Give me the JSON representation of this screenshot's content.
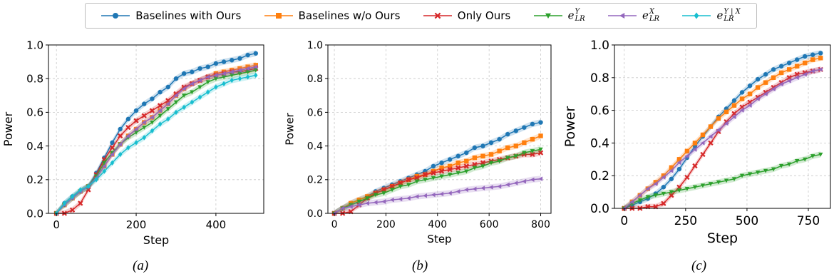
{
  "legend": {
    "items": [
      {
        "label": "Baselines with Ours",
        "color": "#1f77b4",
        "marker": "circle"
      },
      {
        "label": "Baselines w/o Ours",
        "color": "#ff7f0e",
        "marker": "square"
      },
      {
        "label": "Only Ours",
        "color": "#d62728",
        "marker": "x"
      },
      {
        "label": "e^Y_LR",
        "base": "e",
        "sup": "Y",
        "sub": "LR",
        "color": "#2ca02c",
        "marker": "tri-down"
      },
      {
        "label": "e^X_LR",
        "base": "e",
        "sup": "X",
        "sub": "LR",
        "color": "#9467bd",
        "marker": "tri-left"
      },
      {
        "label": "e^{Y|X}_LR",
        "base": "e",
        "sup": "Y | X",
        "sub": "LR",
        "color": "#17becf",
        "marker": "diamond"
      }
    ]
  },
  "captions": [
    "(a)",
    "(b)",
    "(c)"
  ],
  "chart_data": [
    {
      "type": "line",
      "xlabel": "Step",
      "ylabel": "Power",
      "xlim": [
        -20,
        520
      ],
      "ylim": [
        0,
        1.0
      ],
      "xticks": [
        0,
        200,
        400
      ],
      "yticks": [
        0.0,
        0.2,
        0.4,
        0.6,
        0.8,
        1.0
      ],
      "ytick_labels": [
        "0.0",
        "0.2",
        "0.4",
        "0.6",
        "0.8",
        "1.0"
      ],
      "grid": true,
      "x": [
        0,
        20,
        40,
        60,
        80,
        100,
        120,
        140,
        160,
        180,
        200,
        220,
        240,
        260,
        280,
        300,
        320,
        340,
        360,
        380,
        400,
        420,
        440,
        460,
        480,
        500
      ],
      "series": [
        {
          "name": "Baselines with Ours",
          "color": "#1f77b4",
          "marker": "circle",
          "values": [
            0.0,
            0.06,
            0.1,
            0.13,
            0.16,
            0.24,
            0.33,
            0.42,
            0.5,
            0.56,
            0.61,
            0.65,
            0.68,
            0.72,
            0.75,
            0.8,
            0.83,
            0.84,
            0.86,
            0.87,
            0.89,
            0.9,
            0.91,
            0.92,
            0.94,
            0.95
          ]
        },
        {
          "name": "Baselines w/o Ours",
          "color": "#ff7f0e",
          "marker": "square",
          "values": [
            0.0,
            0.05,
            0.09,
            0.13,
            0.16,
            0.21,
            0.28,
            0.35,
            0.41,
            0.46,
            0.5,
            0.54,
            0.57,
            0.61,
            0.65,
            0.7,
            0.74,
            0.77,
            0.79,
            0.81,
            0.83,
            0.84,
            0.85,
            0.86,
            0.87,
            0.88
          ]
        },
        {
          "name": "Only Ours",
          "color": "#d62728",
          "marker": "x",
          "values": [
            0.0,
            0.0,
            0.02,
            0.06,
            0.14,
            0.23,
            0.32,
            0.39,
            0.46,
            0.51,
            0.55,
            0.58,
            0.61,
            0.64,
            0.67,
            0.71,
            0.75,
            0.77,
            0.79,
            0.81,
            0.82,
            0.83,
            0.84,
            0.84,
            0.85,
            0.86
          ]
        },
        {
          "name": "e^Y_LR",
          "color": "#2ca02c",
          "marker": "tri-down",
          "values": [
            0.0,
            0.05,
            0.09,
            0.13,
            0.16,
            0.22,
            0.3,
            0.36,
            0.41,
            0.45,
            0.48,
            0.51,
            0.54,
            0.58,
            0.62,
            0.66,
            0.7,
            0.72,
            0.75,
            0.78,
            0.8,
            0.81,
            0.82,
            0.83,
            0.84,
            0.85
          ]
        },
        {
          "name": "e^X_LR",
          "color": "#9467bd",
          "marker": "tri-left",
          "values": [
            0.0,
            0.05,
            0.09,
            0.13,
            0.16,
            0.21,
            0.28,
            0.35,
            0.41,
            0.46,
            0.5,
            0.54,
            0.57,
            0.61,
            0.65,
            0.7,
            0.74,
            0.77,
            0.79,
            0.81,
            0.82,
            0.83,
            0.84,
            0.85,
            0.86,
            0.87
          ]
        },
        {
          "name": "e^{Y|X}_LR",
          "color": "#17becf",
          "marker": "diamond",
          "values": [
            0.0,
            0.06,
            0.1,
            0.14,
            0.16,
            0.2,
            0.25,
            0.3,
            0.35,
            0.39,
            0.42,
            0.45,
            0.49,
            0.53,
            0.56,
            0.6,
            0.63,
            0.66,
            0.69,
            0.72,
            0.75,
            0.77,
            0.79,
            0.8,
            0.81,
            0.82
          ]
        }
      ]
    },
    {
      "type": "line",
      "xlabel": "Step",
      "ylabel": "Power",
      "xlim": [
        -25,
        840
      ],
      "ylim": [
        0,
        1.0
      ],
      "xticks": [
        0,
        200,
        400,
        600,
        800
      ],
      "yticks": [
        0.0,
        0.2,
        0.4,
        0.6,
        0.8,
        1.0
      ],
      "ytick_labels": [
        "0.0",
        "0.2",
        "0.4",
        "0.6",
        "0.8",
        "1.0"
      ],
      "grid": true,
      "x": [
        0,
        32,
        64,
        96,
        128,
        160,
        192,
        224,
        256,
        288,
        320,
        352,
        384,
        416,
        448,
        480,
        512,
        544,
        576,
        608,
        640,
        672,
        704,
        736,
        768,
        800
      ],
      "series": [
        {
          "name": "Baselines with Ours",
          "color": "#1f77b4",
          "marker": "circle",
          "values": [
            0.0,
            0.03,
            0.06,
            0.08,
            0.1,
            0.13,
            0.15,
            0.17,
            0.19,
            0.21,
            0.23,
            0.25,
            0.28,
            0.3,
            0.32,
            0.34,
            0.36,
            0.39,
            0.4,
            0.42,
            0.44,
            0.47,
            0.49,
            0.51,
            0.53,
            0.54
          ]
        },
        {
          "name": "Baselines w/o Ours",
          "color": "#ff7f0e",
          "marker": "square",
          "values": [
            0.0,
            0.03,
            0.06,
            0.08,
            0.1,
            0.12,
            0.14,
            0.16,
            0.18,
            0.2,
            0.22,
            0.23,
            0.25,
            0.27,
            0.28,
            0.3,
            0.31,
            0.33,
            0.34,
            0.35,
            0.37,
            0.39,
            0.4,
            0.42,
            0.44,
            0.46
          ]
        },
        {
          "name": "Only Ours",
          "color": "#d62728",
          "marker": "x",
          "values": [
            0.0,
            0.0,
            0.01,
            0.05,
            0.09,
            0.12,
            0.14,
            0.16,
            0.18,
            0.2,
            0.21,
            0.23,
            0.24,
            0.25,
            0.26,
            0.27,
            0.28,
            0.29,
            0.3,
            0.31,
            0.32,
            0.33,
            0.34,
            0.35,
            0.35,
            0.36
          ]
        },
        {
          "name": "e^Y_LR",
          "color": "#2ca02c",
          "marker": "tri-down",
          "values": [
            0.0,
            0.03,
            0.05,
            0.07,
            0.09,
            0.11,
            0.12,
            0.14,
            0.16,
            0.17,
            0.19,
            0.2,
            0.21,
            0.22,
            0.23,
            0.24,
            0.25,
            0.27,
            0.28,
            0.3,
            0.31,
            0.33,
            0.34,
            0.36,
            0.37,
            0.38
          ]
        },
        {
          "name": "e^X_LR",
          "color": "#9467bd",
          "marker": "tri-left",
          "values": [
            0.0,
            0.03,
            0.04,
            0.05,
            0.06,
            0.065,
            0.07,
            0.08,
            0.085,
            0.09,
            0.1,
            0.105,
            0.11,
            0.115,
            0.12,
            0.13,
            0.14,
            0.145,
            0.15,
            0.155,
            0.16,
            0.17,
            0.18,
            0.19,
            0.2,
            0.205
          ]
        }
      ]
    },
    {
      "type": "line",
      "xlabel": "Step",
      "ylabel": "Power",
      "xlim": [
        -40,
        840
      ],
      "ylim": [
        0,
        1.0
      ],
      "xticks": [
        0,
        250,
        500,
        750
      ],
      "yticks": [
        0.0,
        0.2,
        0.4,
        0.6,
        0.8,
        1.0
      ],
      "ytick_labels": [
        "0.0",
        "0.2",
        "0.4",
        "0.6",
        "0.8",
        "1.0"
      ],
      "grid": true,
      "x": [
        0,
        32,
        64,
        96,
        128,
        160,
        192,
        224,
        256,
        288,
        320,
        352,
        384,
        416,
        448,
        480,
        512,
        544,
        576,
        608,
        640,
        672,
        704,
        736,
        768,
        800
      ],
      "series": [
        {
          "name": "Baselines with Ours",
          "color": "#1f77b4",
          "marker": "circle",
          "values": [
            0.0,
            0.02,
            0.04,
            0.06,
            0.09,
            0.13,
            0.18,
            0.24,
            0.31,
            0.38,
            0.44,
            0.5,
            0.56,
            0.61,
            0.66,
            0.71,
            0.75,
            0.79,
            0.82,
            0.85,
            0.87,
            0.89,
            0.91,
            0.93,
            0.94,
            0.95
          ]
        },
        {
          "name": "Baselines w/o Ours",
          "color": "#ff7f0e",
          "marker": "square",
          "values": [
            0.0,
            0.04,
            0.08,
            0.12,
            0.16,
            0.2,
            0.25,
            0.3,
            0.35,
            0.4,
            0.45,
            0.5,
            0.55,
            0.59,
            0.63,
            0.67,
            0.7,
            0.74,
            0.77,
            0.8,
            0.83,
            0.85,
            0.87,
            0.89,
            0.91,
            0.92
          ]
        },
        {
          "name": "Only Ours",
          "color": "#d62728",
          "marker": "x",
          "values": [
            0.0,
            0.0,
            0.0,
            0.01,
            0.01,
            0.03,
            0.08,
            0.13,
            0.19,
            0.26,
            0.33,
            0.4,
            0.47,
            0.53,
            0.58,
            0.62,
            0.65,
            0.68,
            0.71,
            0.74,
            0.77,
            0.8,
            0.82,
            0.83,
            0.84,
            0.85
          ]
        },
        {
          "name": "e^Y_LR",
          "color": "#2ca02c",
          "marker": "tri-down",
          "values": [
            0.0,
            0.03,
            0.05,
            0.07,
            0.08,
            0.09,
            0.1,
            0.11,
            0.12,
            0.13,
            0.14,
            0.15,
            0.16,
            0.17,
            0.18,
            0.2,
            0.21,
            0.22,
            0.23,
            0.24,
            0.26,
            0.27,
            0.29,
            0.3,
            0.32,
            0.33
          ]
        },
        {
          "name": "e^X_LR",
          "color": "#9467bd",
          "marker": "tri-left",
          "values": [
            0.0,
            0.04,
            0.08,
            0.12,
            0.15,
            0.19,
            0.23,
            0.28,
            0.32,
            0.36,
            0.4,
            0.44,
            0.48,
            0.52,
            0.56,
            0.6,
            0.63,
            0.67,
            0.7,
            0.73,
            0.76,
            0.78,
            0.8,
            0.82,
            0.84,
            0.85
          ]
        }
      ]
    }
  ]
}
